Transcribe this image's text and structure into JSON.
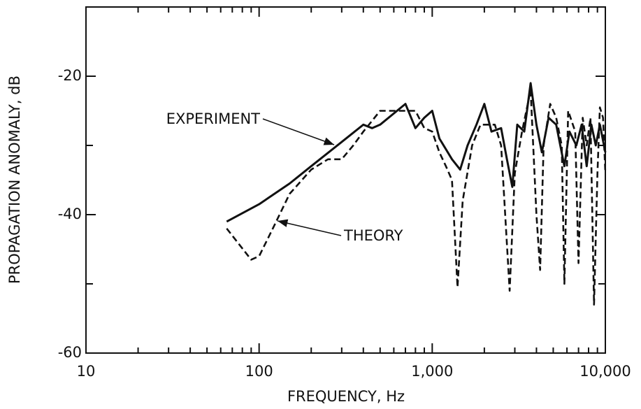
{
  "chart_data": {
    "type": "line",
    "xlabel": "FREQUENCY, Hz",
    "ylabel": "PROPAGATION ANOMALY, dB",
    "xscale": "log",
    "xlim": [
      10,
      10000
    ],
    "xticks": [
      10,
      100,
      {
        "value": 1000,
        "label": "1,000"
      },
      {
        "value": 10000,
        "label": "10,000"
      }
    ],
    "ylim": [
      -60,
      -10
    ],
    "yticks": [
      -60,
      -40,
      -20
    ],
    "grid": false,
    "annotations": [
      {
        "text": "EXPERIMENT",
        "series": 0
      },
      {
        "text": "THEORY",
        "series": 1
      }
    ],
    "series": [
      {
        "name": "EXPERIMENT",
        "color": "#111111",
        "dash": "solid",
        "x": [
          65,
          100,
          150,
          200,
          300,
          400,
          450,
          500,
          700,
          800,
          900,
          1000,
          1100,
          1300,
          1450,
          1600,
          1800,
          2000,
          2200,
          2500,
          2700,
          2900,
          3100,
          3400,
          3700,
          4000,
          4300,
          4700,
          5200,
          5800,
          6200,
          6800,
          7300,
          7800,
          8300,
          8800,
          9300,
          10000
        ],
        "values": [
          -41,
          -38.5,
          -35.5,
          -33,
          -29.5,
          -27,
          -27.5,
          -27,
          -24,
          -27.5,
          -26,
          -25,
          -29,
          -32,
          -33.5,
          -30,
          -27,
          -24,
          -28,
          -27.5,
          -32,
          -36,
          -27,
          -28,
          -21,
          -27,
          -31,
          -26,
          -27,
          -33,
          -28,
          -30,
          -27,
          -33,
          -27,
          -30,
          -27,
          -31
        ]
      },
      {
        "name": "THEORY",
        "color": "#111111",
        "dash": "dashed",
        "x": [
          65,
          90,
          100,
          120,
          150,
          200,
          250,
          300,
          350,
          400,
          500,
          600,
          700,
          800,
          900,
          1000,
          1100,
          1200,
          1300,
          1400,
          1500,
          1700,
          1900,
          2100,
          2300,
          2500,
          2800,
          3000,
          3300,
          3700,
          4000,
          4200,
          4400,
          4800,
          5200,
          5600,
          5800,
          6100,
          6700,
          7000,
          7400,
          7800,
          8200,
          8600,
          9000,
          9300,
          9700,
          10000
        ],
        "values": [
          -42,
          -46.5,
          -46,
          -42,
          -37,
          -33.5,
          -32,
          -32,
          -30,
          -28,
          -25,
          -25,
          -25,
          -25,
          -27.5,
          -28,
          -31,
          -33,
          -35,
          -50.5,
          -38,
          -30,
          -27,
          -27,
          -27,
          -30,
          -51,
          -34,
          -28,
          -22,
          -40,
          -48,
          -30,
          -24,
          -26,
          -30,
          -50,
          -25,
          -28,
          -47,
          -26,
          -30,
          -26,
          -53,
          -34,
          -24.5,
          -26,
          -34
        ]
      }
    ]
  }
}
